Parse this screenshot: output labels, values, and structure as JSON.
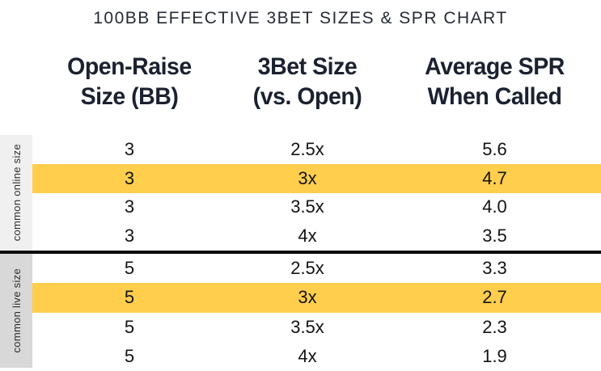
{
  "title": "100BB EFFECTIVE 3BET SIZES & SPR CHART",
  "colors": {
    "highlight_row": "#FFCE4D",
    "sidebar_online_bg": "#F0F0F0",
    "sidebar_live_bg": "#D8D8D8",
    "group_divider": "#0A0A0A",
    "heading_text": "#1B2130",
    "data_text": "#131313",
    "side_label_text": "#2D2D2D",
    "background": "#FFFFFF"
  },
  "table": {
    "headers": [
      {
        "line1": "Open-Raise",
        "line2": "Size (BB)"
      },
      {
        "line1": "3Bet Size",
        "line2": "(vs. Open)"
      },
      {
        "line1": "Average SPR",
        "line2": "When Called"
      }
    ],
    "groups": [
      {
        "label": "common online size",
        "highlight_row_index": 1,
        "rows": [
          [
            "3",
            "2.5x",
            "5.6"
          ],
          [
            "3",
            "3x",
            "4.7"
          ],
          [
            "3",
            "3.5x",
            "4.0"
          ],
          [
            "3",
            "4x",
            "3.5"
          ]
        ]
      },
      {
        "label": "common live size",
        "highlight_row_index": 1,
        "rows": [
          [
            "5",
            "2.5x",
            "3.3"
          ],
          [
            "5",
            "3x",
            "2.7"
          ],
          [
            "5",
            "3.5x",
            "2.3"
          ],
          [
            "5",
            "4x",
            "1.9"
          ]
        ]
      }
    ]
  },
  "chart_data": {
    "type": "table",
    "title": "100BB EFFECTIVE 3BET SIZES & SPR CHART",
    "columns": [
      "Open-Raise Size (BB)",
      "3Bet Size (vs. Open)",
      "Average SPR When Called"
    ],
    "row_groups": [
      {
        "group_label": "common online size",
        "highlighted_row_index": 1,
        "rows": [
          {
            "open_raise_bb": 3,
            "threebet_size_vs_open": "2.5x",
            "avg_spr_when_called": 5.6
          },
          {
            "open_raise_bb": 3,
            "threebet_size_vs_open": "3x",
            "avg_spr_when_called": 4.7
          },
          {
            "open_raise_bb": 3,
            "threebet_size_vs_open": "3.5x",
            "avg_spr_when_called": 4.0
          },
          {
            "open_raise_bb": 3,
            "threebet_size_vs_open": "4x",
            "avg_spr_when_called": 3.5
          }
        ]
      },
      {
        "group_label": "common live size",
        "highlighted_row_index": 1,
        "rows": [
          {
            "open_raise_bb": 5,
            "threebet_size_vs_open": "2.5x",
            "avg_spr_when_called": 3.3
          },
          {
            "open_raise_bb": 5,
            "threebet_size_vs_open": "3x",
            "avg_spr_when_called": 2.7
          },
          {
            "open_raise_bb": 5,
            "threebet_size_vs_open": "3.5x",
            "avg_spr_when_called": 2.3
          },
          {
            "open_raise_bb": 5,
            "threebet_size_vs_open": "4x",
            "avg_spr_when_called": 1.9
          }
        ]
      }
    ],
    "highlight_color": "#FFCE4D",
    "layout": {
      "grid": false,
      "row_group_separator": "thick black line"
    }
  }
}
